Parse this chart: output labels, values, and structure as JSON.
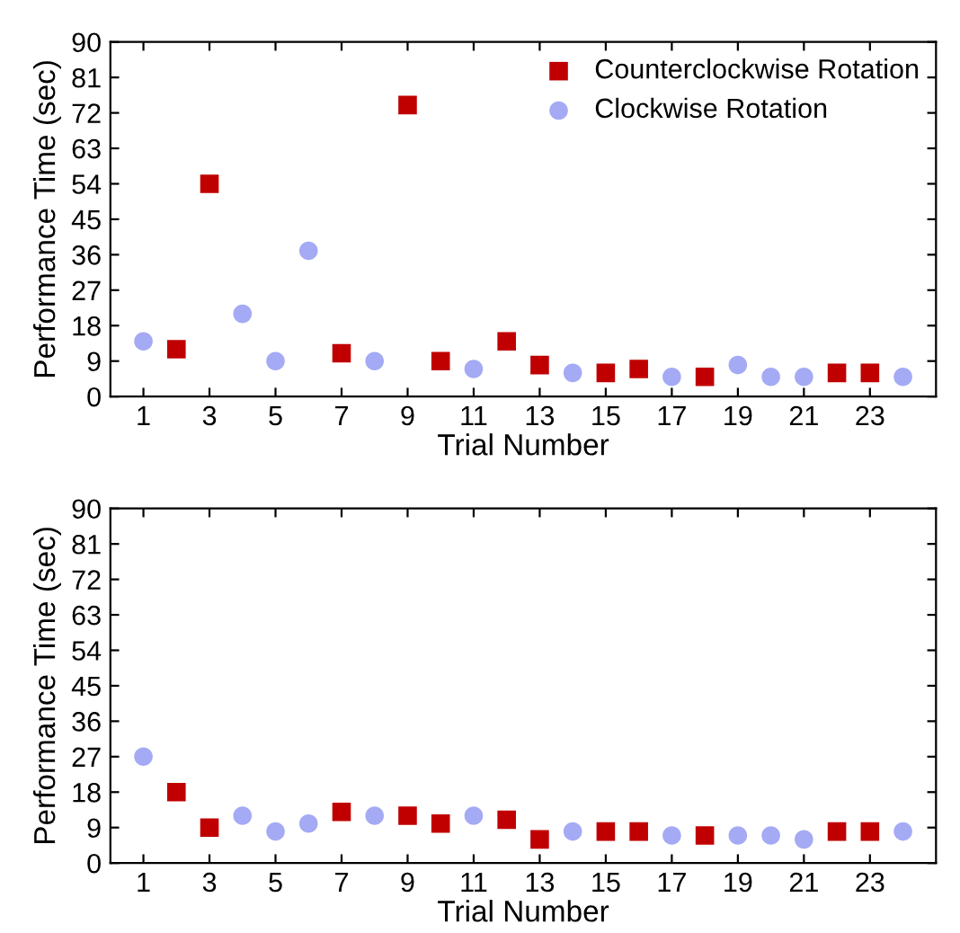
{
  "chart_data": [
    {
      "type": "scatter",
      "xlabel": "Trial Number",
      "ylabel": "Performance Time (sec)",
      "xlim": [
        0,
        25
      ],
      "ylim": [
        0,
        90
      ],
      "xticks": [
        1,
        3,
        5,
        7,
        9,
        11,
        13,
        15,
        17,
        19,
        21,
        23
      ],
      "yticks": [
        0,
        9,
        18,
        27,
        36,
        45,
        54,
        63,
        72,
        81,
        90
      ],
      "legend": "top right",
      "grid": false,
      "series": [
        {
          "name": "Counterclockwise Rotation",
          "color": "#c00000",
          "marker": "square",
          "x": [
            2,
            3,
            7,
            9,
            10,
            12,
            13,
            15,
            16,
            18,
            22,
            23
          ],
          "values": [
            12,
            54,
            11,
            74,
            9,
            14,
            8,
            6,
            7,
            5,
            6,
            6
          ]
        },
        {
          "name": "Clockwise Rotation",
          "color": "#a4aaf4",
          "marker": "circle",
          "x": [
            1,
            4,
            5,
            6,
            8,
            11,
            14,
            17,
            19,
            20,
            21,
            24
          ],
          "values": [
            14,
            21,
            9,
            37,
            9,
            7,
            6,
            5,
            8,
            5,
            5,
            5
          ]
        }
      ]
    },
    {
      "type": "scatter",
      "xlabel": "Trial Number",
      "ylabel": "Performance Time (sec)",
      "xlim": [
        0,
        25
      ],
      "ylim": [
        0,
        90
      ],
      "xticks": [
        1,
        3,
        5,
        7,
        9,
        11,
        13,
        15,
        17,
        19,
        21,
        23
      ],
      "yticks": [
        0,
        9,
        18,
        27,
        36,
        45,
        54,
        63,
        72,
        81,
        90
      ],
      "legend": false,
      "grid": false,
      "series": [
        {
          "color": "#c00000",
          "marker": "square",
          "x": [
            2,
            3,
            7,
            9,
            10,
            12,
            13,
            15,
            16,
            18,
            22,
            23
          ],
          "values": [
            18,
            9,
            13,
            12,
            10,
            11,
            6,
            8,
            8,
            7,
            8,
            8
          ]
        },
        {
          "color": "#a4aaf4",
          "marker": "circle",
          "x": [
            1,
            4,
            5,
            6,
            8,
            11,
            14,
            17,
            19,
            20,
            21,
            24
          ],
          "values": [
            27,
            12,
            8,
            10,
            12,
            12,
            8,
            7,
            7,
            7,
            6,
            8
          ]
        }
      ]
    }
  ]
}
